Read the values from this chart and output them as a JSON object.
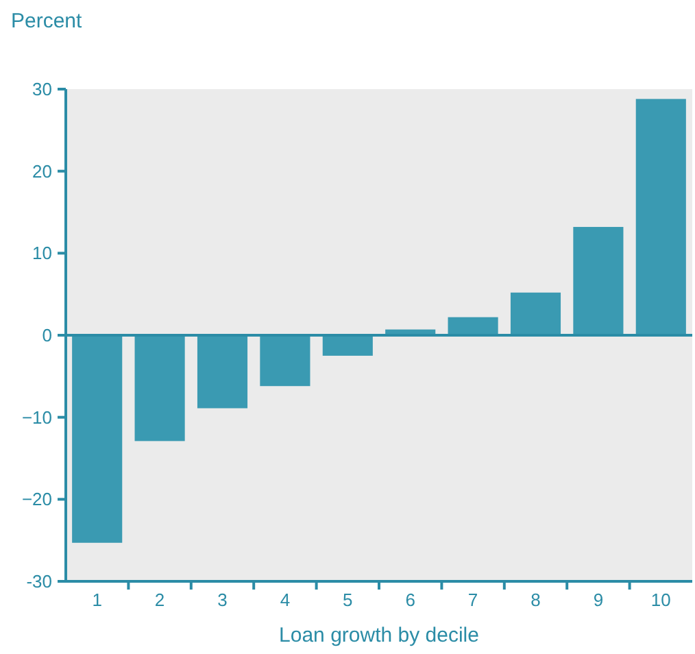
{
  "chart_data": {
    "type": "bar",
    "ylabel": "Percent",
    "xlabel": "Loan growth by decile",
    "categories": [
      "1",
      "2",
      "3",
      "4",
      "5",
      "6",
      "7",
      "8",
      "9",
      "10"
    ],
    "values": [
      -25.3,
      -12.9,
      -8.9,
      -6.2,
      -2.5,
      0.7,
      2.2,
      5.2,
      13.2,
      28.8
    ],
    "color": "#3a9ab2",
    "ylim": [
      -30,
      30
    ],
    "yticks": [
      -30,
      {
        "value": -20,
        "label": "−20"
      },
      {
        "value": -10,
        "label": "−10"
      },
      0,
      10,
      20,
      30
    ],
    "ref_lines": [
      {
        "axis": "y",
        "value": 0,
        "color": "#2b8ca6"
      }
    ],
    "grid": false
  }
}
